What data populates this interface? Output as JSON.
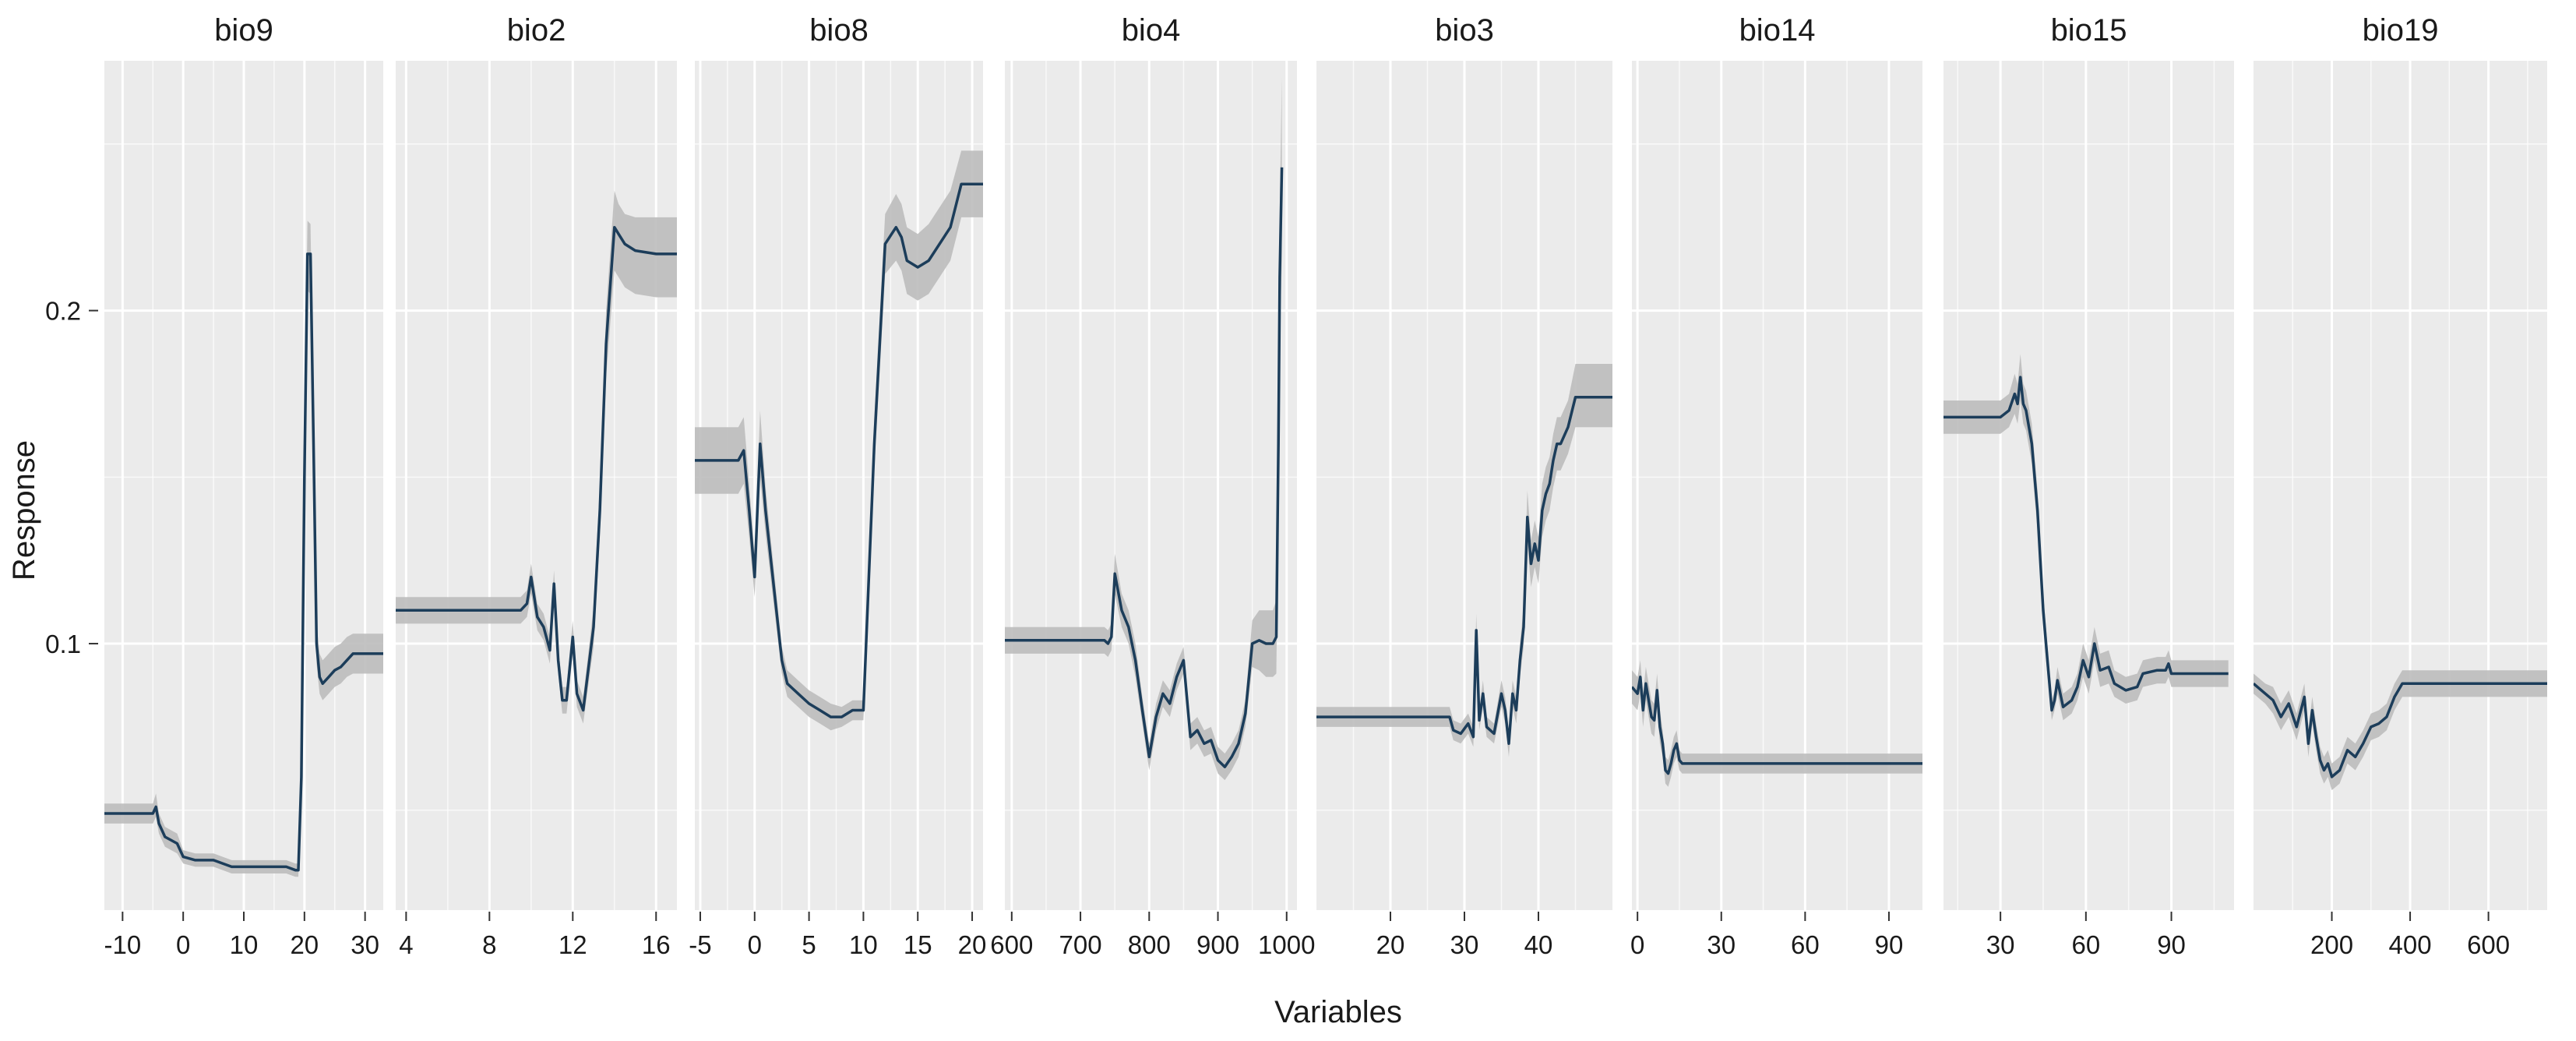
{
  "chart_data": {
    "type": "line",
    "xlabel": "Variables",
    "ylabel": "Response",
    "ylim": [
      0.02,
      0.275
    ],
    "y_ticks": [
      0.1,
      0.2
    ],
    "y_tick_labels": [
      "0.1",
      "0.2"
    ],
    "grid": true,
    "legend": "none",
    "colors": {
      "line": "#1c3d5a",
      "ribbon": "#bdbdbd",
      "panel": "#ebebeb",
      "grid": "#ffffff"
    },
    "panels": [
      {
        "title": "bio9",
        "xlim": [
          -13,
          33
        ],
        "x_ticks": [
          -10,
          0,
          10,
          20,
          30
        ],
        "x_tick_labels": [
          "-10",
          "0",
          "10",
          "20",
          "30"
        ],
        "x": [
          -13,
          -5,
          -4.5,
          -4,
          -3,
          -1,
          0,
          2,
          5,
          8,
          12,
          15,
          17,
          18.5,
          19,
          19.5,
          20,
          20.5,
          21,
          21.5,
          22,
          22.5,
          23,
          24,
          25,
          26,
          27,
          28,
          33
        ],
        "y": [
          0.049,
          0.049,
          0.051,
          0.046,
          0.042,
          0.04,
          0.036,
          0.035,
          0.035,
          0.033,
          0.033,
          0.033,
          0.033,
          0.032,
          0.032,
          0.06,
          0.15,
          0.217,
          0.217,
          0.16,
          0.1,
          0.09,
          0.088,
          0.09,
          0.092,
          0.093,
          0.095,
          0.097,
          0.097
        ],
        "y_low": [
          0.046,
          0.046,
          0.048,
          0.043,
          0.039,
          0.037,
          0.034,
          0.033,
          0.033,
          0.031,
          0.031,
          0.031,
          0.031,
          0.03,
          0.03,
          0.056,
          0.14,
          0.206,
          0.205,
          0.15,
          0.094,
          0.085,
          0.083,
          0.085,
          0.087,
          0.088,
          0.09,
          0.091,
          0.091
        ],
        "y_high": [
          0.052,
          0.052,
          0.055,
          0.049,
          0.045,
          0.043,
          0.038,
          0.037,
          0.037,
          0.035,
          0.035,
          0.035,
          0.035,
          0.034,
          0.034,
          0.064,
          0.16,
          0.227,
          0.226,
          0.17,
          0.106,
          0.097,
          0.095,
          0.097,
          0.099,
          0.1,
          0.102,
          0.103,
          0.103
        ]
      },
      {
        "title": "bio2",
        "xlim": [
          3.5,
          17
        ],
        "x_ticks": [
          4,
          8,
          12,
          16
        ],
        "x_tick_labels": [
          "4",
          "8",
          "12",
          "16"
        ],
        "x": [
          3.5,
          9.5,
          9.8,
          10.0,
          10.3,
          10.6,
          10.9,
          11.1,
          11.3,
          11.5,
          11.7,
          12.0,
          12.2,
          12.5,
          12.8,
          13.0,
          13.3,
          13.6,
          14.0,
          14.2,
          14.5,
          15.0,
          16.0,
          17.0
        ],
        "y": [
          0.11,
          0.11,
          0.112,
          0.12,
          0.108,
          0.105,
          0.098,
          0.118,
          0.095,
          0.083,
          0.083,
          0.102,
          0.085,
          0.08,
          0.095,
          0.105,
          0.14,
          0.19,
          0.225,
          0.223,
          0.22,
          0.218,
          0.217,
          0.217
        ],
        "y_low": [
          0.106,
          0.106,
          0.108,
          0.115,
          0.104,
          0.101,
          0.094,
          0.113,
          0.091,
          0.079,
          0.079,
          0.097,
          0.081,
          0.076,
          0.09,
          0.099,
          0.132,
          0.18,
          0.212,
          0.21,
          0.207,
          0.205,
          0.204,
          0.204
        ],
        "y_high": [
          0.114,
          0.114,
          0.116,
          0.124,
          0.112,
          0.109,
          0.102,
          0.122,
          0.099,
          0.087,
          0.087,
          0.107,
          0.089,
          0.084,
          0.1,
          0.111,
          0.148,
          0.2,
          0.236,
          0.232,
          0.229,
          0.228,
          0.228,
          0.228
        ]
      },
      {
        "title": "bio8",
        "xlim": [
          -5.5,
          21
        ],
        "x_ticks": [
          -5,
          0,
          5,
          10,
          15,
          20
        ],
        "x_tick_labels": [
          "-5",
          "0",
          "5",
          "10",
          "15",
          "20"
        ],
        "x": [
          -5.5,
          -1.5,
          -1,
          -0.5,
          0,
          0.5,
          1,
          1.5,
          2,
          2.5,
          3,
          4,
          5,
          6,
          7,
          8,
          9,
          10,
          10.5,
          11,
          12,
          13,
          13.5,
          14,
          15,
          16,
          18,
          19,
          21
        ],
        "y": [
          0.155,
          0.155,
          0.158,
          0.14,
          0.12,
          0.16,
          0.14,
          0.125,
          0.11,
          0.095,
          0.088,
          0.085,
          0.082,
          0.08,
          0.078,
          0.078,
          0.08,
          0.08,
          0.12,
          0.16,
          0.22,
          0.225,
          0.222,
          0.215,
          0.213,
          0.215,
          0.225,
          0.238,
          0.238
        ],
        "y_low": [
          0.145,
          0.145,
          0.148,
          0.132,
          0.114,
          0.15,
          0.133,
          0.119,
          0.105,
          0.091,
          0.084,
          0.081,
          0.078,
          0.076,
          0.074,
          0.075,
          0.077,
          0.077,
          0.113,
          0.152,
          0.211,
          0.215,
          0.212,
          0.205,
          0.203,
          0.205,
          0.215,
          0.228,
          0.228
        ],
        "y_high": [
          0.165,
          0.165,
          0.168,
          0.148,
          0.126,
          0.17,
          0.147,
          0.131,
          0.115,
          0.099,
          0.092,
          0.089,
          0.086,
          0.084,
          0.082,
          0.081,
          0.083,
          0.083,
          0.127,
          0.168,
          0.229,
          0.235,
          0.232,
          0.225,
          0.223,
          0.226,
          0.236,
          0.248,
          0.248
        ]
      },
      {
        "title": "bio4",
        "xlim": [
          590,
          1015
        ],
        "x_ticks": [
          600,
          700,
          800,
          900,
          1000
        ],
        "x_tick_labels": [
          "600",
          "700",
          "800",
          "900",
          "1000"
        ],
        "x": [
          590,
          735,
          740,
          745,
          750,
          760,
          770,
          780,
          790,
          800,
          810,
          820,
          830,
          840,
          850,
          860,
          870,
          880,
          890,
          900,
          910,
          920,
          930,
          940,
          950,
          960,
          970,
          980,
          985,
          988,
          990,
          993
        ],
        "y": [
          0.101,
          0.101,
          0.1,
          0.102,
          0.121,
          0.11,
          0.105,
          0.095,
          0.08,
          0.066,
          0.078,
          0.085,
          0.082,
          0.09,
          0.095,
          0.072,
          0.074,
          0.07,
          0.071,
          0.065,
          0.063,
          0.066,
          0.07,
          0.079,
          0.1,
          0.101,
          0.1,
          0.1,
          0.102,
          0.16,
          0.21,
          0.243
        ],
        "y_low": [
          0.097,
          0.097,
          0.096,
          0.098,
          0.115,
          0.105,
          0.1,
          0.09,
          0.076,
          0.062,
          0.074,
          0.081,
          0.078,
          0.086,
          0.091,
          0.068,
          0.07,
          0.066,
          0.067,
          0.061,
          0.059,
          0.062,
          0.066,
          0.075,
          0.093,
          0.092,
          0.09,
          0.09,
          0.091,
          0.145,
          0.19,
          0.215
        ],
        "y_high": [
          0.105,
          0.105,
          0.104,
          0.106,
          0.127,
          0.115,
          0.11,
          0.1,
          0.084,
          0.07,
          0.082,
          0.089,
          0.086,
          0.094,
          0.099,
          0.076,
          0.078,
          0.074,
          0.075,
          0.069,
          0.067,
          0.07,
          0.074,
          0.083,
          0.107,
          0.11,
          0.11,
          0.11,
          0.113,
          0.175,
          0.23,
          0.27
        ]
      },
      {
        "title": "bio3",
        "xlim": [
          10,
          50
        ],
        "x_ticks": [
          20,
          30,
          40
        ],
        "x_tick_labels": [
          "20",
          "30",
          "40"
        ],
        "x": [
          10,
          28,
          28.5,
          29.5,
          30.5,
          31.2,
          31.6,
          32,
          32.5,
          33,
          34,
          35,
          35.5,
          36,
          36.5,
          37,
          37.5,
          38,
          38.5,
          39,
          39.5,
          40,
          40.5,
          41,
          41.5,
          42,
          42.5,
          43,
          44,
          45,
          46,
          50
        ],
        "y": [
          0.078,
          0.078,
          0.074,
          0.073,
          0.076,
          0.072,
          0.104,
          0.077,
          0.085,
          0.075,
          0.073,
          0.085,
          0.08,
          0.07,
          0.085,
          0.08,
          0.095,
          0.105,
          0.138,
          0.124,
          0.13,
          0.125,
          0.14,
          0.145,
          0.148,
          0.155,
          0.16,
          0.16,
          0.165,
          0.174,
          0.174,
          0.174
        ],
        "y_low": [
          0.075,
          0.075,
          0.071,
          0.07,
          0.073,
          0.069,
          0.099,
          0.074,
          0.081,
          0.072,
          0.07,
          0.081,
          0.076,
          0.066,
          0.081,
          0.076,
          0.09,
          0.099,
          0.13,
          0.117,
          0.123,
          0.118,
          0.132,
          0.137,
          0.14,
          0.147,
          0.152,
          0.152,
          0.157,
          0.165,
          0.165,
          0.165
        ],
        "y_high": [
          0.081,
          0.081,
          0.077,
          0.076,
          0.079,
          0.075,
          0.109,
          0.08,
          0.089,
          0.078,
          0.076,
          0.089,
          0.084,
          0.074,
          0.089,
          0.084,
          0.1,
          0.111,
          0.146,
          0.131,
          0.137,
          0.132,
          0.148,
          0.153,
          0.156,
          0.163,
          0.168,
          0.168,
          0.173,
          0.184,
          0.184,
          0.184
        ]
      },
      {
        "title": "bio14",
        "xlim": [
          -2,
          102
        ],
        "x_ticks": [
          0,
          30,
          60,
          90
        ],
        "x_tick_labels": [
          "0",
          "30",
          "60",
          "90"
        ],
        "x": [
          -2,
          0,
          1,
          2,
          3,
          4,
          5,
          6,
          7,
          8,
          9,
          10,
          11,
          12,
          13,
          14,
          15,
          16,
          18,
          20,
          25,
          102
        ],
        "y": [
          0.087,
          0.085,
          0.09,
          0.08,
          0.088,
          0.083,
          0.078,
          0.077,
          0.086,
          0.075,
          0.07,
          0.062,
          0.061,
          0.064,
          0.068,
          0.07,
          0.065,
          0.064,
          0.064,
          0.064,
          0.064,
          0.064
        ],
        "y_low": [
          0.082,
          0.08,
          0.085,
          0.075,
          0.083,
          0.078,
          0.073,
          0.072,
          0.081,
          0.07,
          0.066,
          0.058,
          0.057,
          0.06,
          0.064,
          0.066,
          0.062,
          0.061,
          0.061,
          0.061,
          0.061,
          0.061
        ],
        "y_high": [
          0.092,
          0.09,
          0.095,
          0.085,
          0.093,
          0.088,
          0.083,
          0.082,
          0.091,
          0.08,
          0.074,
          0.066,
          0.065,
          0.068,
          0.072,
          0.074,
          0.068,
          0.067,
          0.067,
          0.067,
          0.067,
          0.067
        ]
      },
      {
        "title": "bio15",
        "xlim": [
          10,
          112
        ],
        "x_ticks": [
          30,
          60,
          90
        ],
        "x_tick_labels": [
          "30",
          "60",
          "90"
        ],
        "x": [
          10,
          30,
          33,
          35,
          36,
          37,
          38,
          39,
          40,
          41,
          42,
          43,
          44,
          45,
          46,
          47,
          48,
          49,
          50,
          52,
          55,
          57,
          59,
          61,
          63,
          65,
          68,
          70,
          74,
          78,
          80,
          85,
          88,
          89,
          90,
          95,
          110
        ],
        "y": [
          0.168,
          0.168,
          0.17,
          0.175,
          0.172,
          0.18,
          0.172,
          0.17,
          0.165,
          0.16,
          0.15,
          0.14,
          0.125,
          0.11,
          0.1,
          0.09,
          0.08,
          0.083,
          0.089,
          0.081,
          0.083,
          0.087,
          0.095,
          0.09,
          0.1,
          0.092,
          0.093,
          0.088,
          0.086,
          0.087,
          0.091,
          0.092,
          0.092,
          0.094,
          0.091,
          0.091,
          0.091
        ],
        "y_low": [
          0.163,
          0.163,
          0.165,
          0.169,
          0.166,
          0.173,
          0.166,
          0.164,
          0.159,
          0.154,
          0.144,
          0.134,
          0.12,
          0.105,
          0.095,
          0.086,
          0.077,
          0.08,
          0.085,
          0.077,
          0.079,
          0.083,
          0.09,
          0.085,
          0.095,
          0.087,
          0.088,
          0.084,
          0.082,
          0.083,
          0.087,
          0.088,
          0.088,
          0.09,
          0.087,
          0.087,
          0.087
        ],
        "y_high": [
          0.173,
          0.173,
          0.175,
          0.181,
          0.178,
          0.187,
          0.178,
          0.176,
          0.171,
          0.166,
          0.156,
          0.146,
          0.13,
          0.115,
          0.105,
          0.094,
          0.083,
          0.086,
          0.093,
          0.085,
          0.087,
          0.091,
          0.1,
          0.095,
          0.105,
          0.097,
          0.098,
          0.092,
          0.09,
          0.091,
          0.095,
          0.096,
          0.096,
          0.098,
          0.095,
          0.095,
          0.095
        ]
      },
      {
        "title": "bio19",
        "xlim": [
          0,
          750
        ],
        "x_ticks": [
          200,
          400,
          600
        ],
        "x_tick_labels": [
          "200",
          "400",
          "600"
        ],
        "x": [
          0,
          30,
          50,
          70,
          90,
          110,
          130,
          140,
          150,
          160,
          170,
          180,
          190,
          200,
          220,
          240,
          260,
          280,
          300,
          320,
          340,
          360,
          380,
          400,
          500,
          600,
          750
        ],
        "y": [
          0.088,
          0.085,
          0.083,
          0.078,
          0.082,
          0.075,
          0.084,
          0.07,
          0.08,
          0.072,
          0.065,
          0.062,
          0.064,
          0.06,
          0.062,
          0.068,
          0.066,
          0.07,
          0.075,
          0.076,
          0.078,
          0.084,
          0.088,
          0.088,
          0.088,
          0.088,
          0.088
        ],
        "y_low": [
          0.085,
          0.082,
          0.079,
          0.074,
          0.078,
          0.071,
          0.08,
          0.066,
          0.076,
          0.068,
          0.061,
          0.058,
          0.06,
          0.056,
          0.058,
          0.064,
          0.062,
          0.066,
          0.071,
          0.072,
          0.074,
          0.08,
          0.084,
          0.084,
          0.084,
          0.084,
          0.084
        ],
        "y_high": [
          0.091,
          0.088,
          0.087,
          0.082,
          0.086,
          0.079,
          0.088,
          0.074,
          0.084,
          0.076,
          0.069,
          0.066,
          0.068,
          0.064,
          0.066,
          0.072,
          0.07,
          0.074,
          0.079,
          0.08,
          0.082,
          0.088,
          0.092,
          0.092,
          0.092,
          0.092,
          0.092
        ]
      }
    ]
  }
}
